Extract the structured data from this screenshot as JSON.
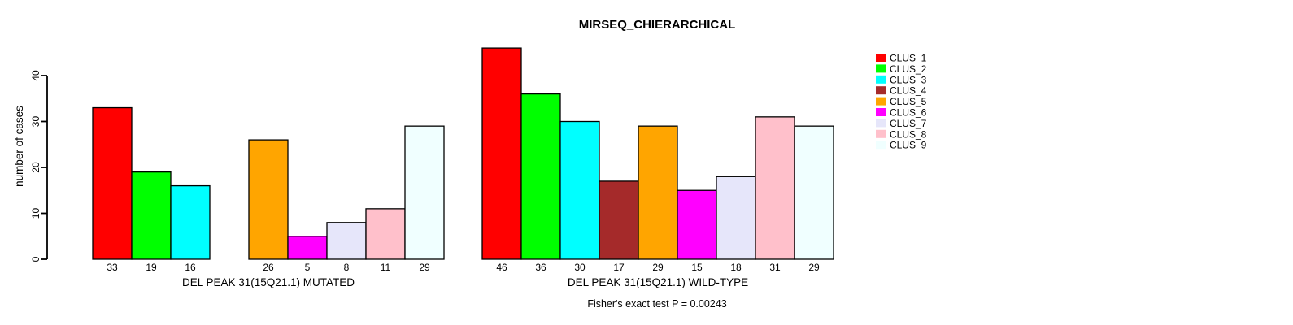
{
  "chart_data": {
    "type": "bar",
    "title": "MIRSEQ_CHIERARCHICAL",
    "ylabel": "number of cases",
    "caption": "Fisher's exact test P = 0.00243",
    "ylim": [
      0,
      40
    ],
    "yticks": [
      0,
      10,
      20,
      30,
      40
    ],
    "grid": false,
    "legend_position": "right",
    "categories": [
      "CLUS_1",
      "CLUS_2",
      "CLUS_3",
      "CLUS_4",
      "CLUS_5",
      "CLUS_6",
      "CLUS_7",
      "CLUS_8",
      "CLUS_9"
    ],
    "colors": [
      "#FF0000",
      "#00FF00",
      "#00FFFF",
      "#A52A2A",
      "#FFA500",
      "#FF00FF",
      "#E6E6FA",
      "#FFC0CB",
      "#F0FFFF"
    ],
    "bar_border_color": "#000000",
    "groups": [
      {
        "xlabel": "DEL PEAK 31(15Q21.1) MUTATED",
        "values": [
          33,
          19,
          16,
          0,
          26,
          5,
          8,
          11,
          29
        ]
      },
      {
        "xlabel": "DEL PEAK 31(15Q21.1) WILD-TYPE",
        "values": [
          46,
          36,
          30,
          17,
          29,
          15,
          18,
          31,
          29
        ]
      }
    ],
    "legend": [
      {
        "label": "CLUS_1",
        "color": "#FF0000"
      },
      {
        "label": "CLUS_2",
        "color": "#00FF00"
      },
      {
        "label": "CLUS_3",
        "color": "#00FFFF"
      },
      {
        "label": "CLUS_4",
        "color": "#A52A2A"
      },
      {
        "label": "CLUS_5",
        "color": "#FFA500"
      },
      {
        "label": "CLUS_6",
        "color": "#FF00FF"
      },
      {
        "label": "CLUS_7",
        "color": "#E6E6FA"
      },
      {
        "label": "CLUS_8",
        "color": "#FFC0CB"
      },
      {
        "label": "CLUS_9",
        "color": "#F0FFFF"
      }
    ]
  }
}
